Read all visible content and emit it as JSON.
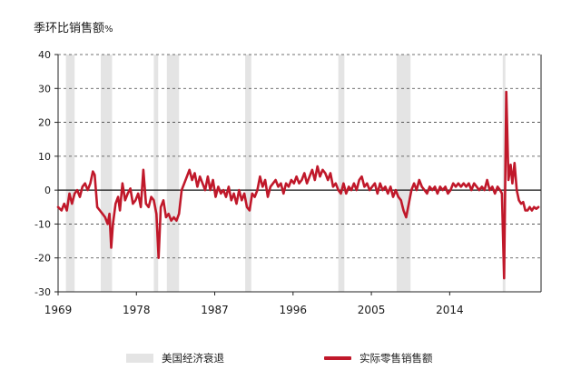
{
  "chart_data": {
    "type": "line",
    "title": "季环比销售额",
    "title_unit": "%",
    "ylim": [
      -30,
      40
    ],
    "y_ticks": [
      40,
      30,
      20,
      10,
      0,
      -10,
      -20,
      -30
    ],
    "xlim": [
      1969,
      2024.5
    ],
    "x_ticks": [
      1969,
      1978,
      1987,
      1996,
      2005,
      2014
    ],
    "grid": "horizontal-dashed",
    "legend": [
      {
        "label": "美国经济衰退",
        "kind": "band",
        "color": "#e4e4e4"
      },
      {
        "label": "实际零售销售额",
        "kind": "line",
        "color": "#c0182a"
      }
    ],
    "recessions": [
      [
        1969.9,
        1970.9
      ],
      [
        1973.9,
        1975.2
      ],
      [
        1980.0,
        1980.5
      ],
      [
        1981.5,
        1982.9
      ],
      [
        1990.5,
        1991.2
      ],
      [
        2001.2,
        2001.9
      ],
      [
        2007.9,
        2009.5
      ],
      [
        2020.1,
        2020.4
      ]
    ],
    "series": [
      {
        "name": "实际零售销售额",
        "color": "#c0182a",
        "points": [
          [
            1969.0,
            -5
          ],
          [
            1969.4,
            -6
          ],
          [
            1969.7,
            -4
          ],
          [
            1970.0,
            -6
          ],
          [
            1970.3,
            -1
          ],
          [
            1970.6,
            -4
          ],
          [
            1970.9,
            -1
          ],
          [
            1971.2,
            0
          ],
          [
            1971.5,
            -2
          ],
          [
            1971.8,
            1
          ],
          [
            1972.1,
            2
          ],
          [
            1972.4,
            0
          ],
          [
            1972.7,
            2
          ],
          [
            1973.0,
            5.5
          ],
          [
            1973.2,
            4.5
          ],
          [
            1973.5,
            -5
          ],
          [
            1973.8,
            -6
          ],
          [
            1974.1,
            -7
          ],
          [
            1974.4,
            -8
          ],
          [
            1974.7,
            -10
          ],
          [
            1974.9,
            -7
          ],
          [
            1975.1,
            -17
          ],
          [
            1975.3,
            -10
          ],
          [
            1975.6,
            -4
          ],
          [
            1975.9,
            -2
          ],
          [
            1976.1,
            -6
          ],
          [
            1976.4,
            2
          ],
          [
            1976.7,
            -3
          ],
          [
            1977.0,
            -1
          ],
          [
            1977.3,
            0.5
          ],
          [
            1977.6,
            -4
          ],
          [
            1977.9,
            -3
          ],
          [
            1978.2,
            -1
          ],
          [
            1978.5,
            -5
          ],
          [
            1978.8,
            6
          ],
          [
            1979.1,
            -4
          ],
          [
            1979.4,
            -5
          ],
          [
            1979.7,
            -2
          ],
          [
            1980.0,
            -3
          ],
          [
            1980.3,
            -7
          ],
          [
            1980.55,
            -20
          ],
          [
            1980.8,
            -5
          ],
          [
            1981.1,
            -3
          ],
          [
            1981.4,
            -8
          ],
          [
            1981.7,
            -7
          ],
          [
            1982.0,
            -9
          ],
          [
            1982.3,
            -8
          ],
          [
            1982.6,
            -9
          ],
          [
            1982.9,
            -7
          ],
          [
            1983.2,
            0
          ],
          [
            1983.5,
            2
          ],
          [
            1983.8,
            4
          ],
          [
            1984.1,
            6
          ],
          [
            1984.4,
            3
          ],
          [
            1984.7,
            5
          ],
          [
            1985.0,
            1
          ],
          [
            1985.3,
            4
          ],
          [
            1985.6,
            2
          ],
          [
            1985.9,
            0
          ],
          [
            1986.2,
            4
          ],
          [
            1986.5,
            0
          ],
          [
            1986.8,
            3
          ],
          [
            1987.1,
            -2
          ],
          [
            1987.4,
            1
          ],
          [
            1987.7,
            -1
          ],
          [
            1988.0,
            0
          ],
          [
            1988.3,
            -2
          ],
          [
            1988.6,
            1
          ],
          [
            1988.9,
            -3
          ],
          [
            1989.2,
            -1
          ],
          [
            1989.5,
            -4
          ],
          [
            1989.8,
            0
          ],
          [
            1990.1,
            -3
          ],
          [
            1990.4,
            -1
          ],
          [
            1990.7,
            -5
          ],
          [
            1991.0,
            -6
          ],
          [
            1991.3,
            -1
          ],
          [
            1991.6,
            -2
          ],
          [
            1991.9,
            0
          ],
          [
            1992.2,
            4
          ],
          [
            1992.5,
            1
          ],
          [
            1992.8,
            3
          ],
          [
            1993.1,
            -2
          ],
          [
            1993.4,
            1
          ],
          [
            1993.7,
            2
          ],
          [
            1994.0,
            3
          ],
          [
            1994.3,
            1
          ],
          [
            1994.6,
            2
          ],
          [
            1994.9,
            -1
          ],
          [
            1995.2,
            2
          ],
          [
            1995.5,
            1
          ],
          [
            1995.8,
            3
          ],
          [
            1996.1,
            2
          ],
          [
            1996.4,
            4
          ],
          [
            1996.7,
            2
          ],
          [
            1997.0,
            3
          ],
          [
            1997.3,
            5
          ],
          [
            1997.6,
            2
          ],
          [
            1997.9,
            4
          ],
          [
            1998.2,
            6
          ],
          [
            1998.5,
            3
          ],
          [
            1998.8,
            7
          ],
          [
            1999.1,
            4
          ],
          [
            1999.4,
            6
          ],
          [
            1999.7,
            5
          ],
          [
            2000.0,
            3
          ],
          [
            2000.3,
            5
          ],
          [
            2000.6,
            1
          ],
          [
            2000.9,
            2
          ],
          [
            2001.2,
            0
          ],
          [
            2001.5,
            -1
          ],
          [
            2001.8,
            2
          ],
          [
            2002.1,
            -1
          ],
          [
            2002.4,
            1
          ],
          [
            2002.7,
            0
          ],
          [
            2003.0,
            2
          ],
          [
            2003.3,
            0
          ],
          [
            2003.6,
            3
          ],
          [
            2003.9,
            4
          ],
          [
            2004.2,
            1
          ],
          [
            2004.5,
            2
          ],
          [
            2004.8,
            0
          ],
          [
            2005.1,
            1
          ],
          [
            2005.4,
            2
          ],
          [
            2005.7,
            -1
          ],
          [
            2006.0,
            2
          ],
          [
            2006.3,
            0
          ],
          [
            2006.6,
            1
          ],
          [
            2006.9,
            -1
          ],
          [
            2007.2,
            1
          ],
          [
            2007.5,
            -2
          ],
          [
            2007.8,
            0
          ],
          [
            2008.1,
            -2
          ],
          [
            2008.4,
            -3
          ],
          [
            2008.7,
            -6
          ],
          [
            2009.0,
            -8
          ],
          [
            2009.3,
            -4
          ],
          [
            2009.6,
            0
          ],
          [
            2009.9,
            2
          ],
          [
            2010.2,
            0
          ],
          [
            2010.5,
            3
          ],
          [
            2010.8,
            1
          ],
          [
            2011.1,
            0
          ],
          [
            2011.4,
            -1
          ],
          [
            2011.7,
            1
          ],
          [
            2012.0,
            0
          ],
          [
            2012.3,
            1
          ],
          [
            2012.6,
            -1
          ],
          [
            2012.9,
            1
          ],
          [
            2013.2,
            0
          ],
          [
            2013.5,
            1
          ],
          [
            2013.8,
            -1
          ],
          [
            2014.1,
            0
          ],
          [
            2014.4,
            2
          ],
          [
            2014.7,
            1
          ],
          [
            2015.0,
            2
          ],
          [
            2015.3,
            1
          ],
          [
            2015.6,
            2
          ],
          [
            2015.9,
            1
          ],
          [
            2016.2,
            2
          ],
          [
            2016.5,
            0
          ],
          [
            2016.8,
            2
          ],
          [
            2017.1,
            1
          ],
          [
            2017.4,
            0
          ],
          [
            2017.7,
            1
          ],
          [
            2018.0,
            0
          ],
          [
            2018.3,
            3
          ],
          [
            2018.6,
            0
          ],
          [
            2018.9,
            1
          ],
          [
            2019.2,
            -1
          ],
          [
            2019.5,
            1
          ],
          [
            2019.8,
            0
          ],
          [
            2020.0,
            -1
          ],
          [
            2020.25,
            -26
          ],
          [
            2020.5,
            29
          ],
          [
            2020.75,
            3
          ],
          [
            2021.0,
            7.5
          ],
          [
            2021.2,
            2
          ],
          [
            2021.45,
            8
          ],
          [
            2021.7,
            0
          ],
          [
            2021.95,
            -3
          ],
          [
            2022.2,
            -4
          ],
          [
            2022.45,
            -3.5
          ],
          [
            2022.7,
            -6
          ],
          [
            2022.95,
            -6
          ],
          [
            2023.2,
            -5
          ],
          [
            2023.45,
            -6
          ],
          [
            2023.7,
            -5
          ],
          [
            2023.95,
            -5.5
          ],
          [
            2024.2,
            -5
          ]
        ]
      }
    ],
    "x_labels": [
      "1969",
      "1978",
      "1987",
      "1996",
      "2005",
      "2014"
    ],
    "y_labels": [
      "40",
      "30",
      "20",
      "10",
      "0",
      "-10",
      "-20",
      "-30"
    ]
  }
}
